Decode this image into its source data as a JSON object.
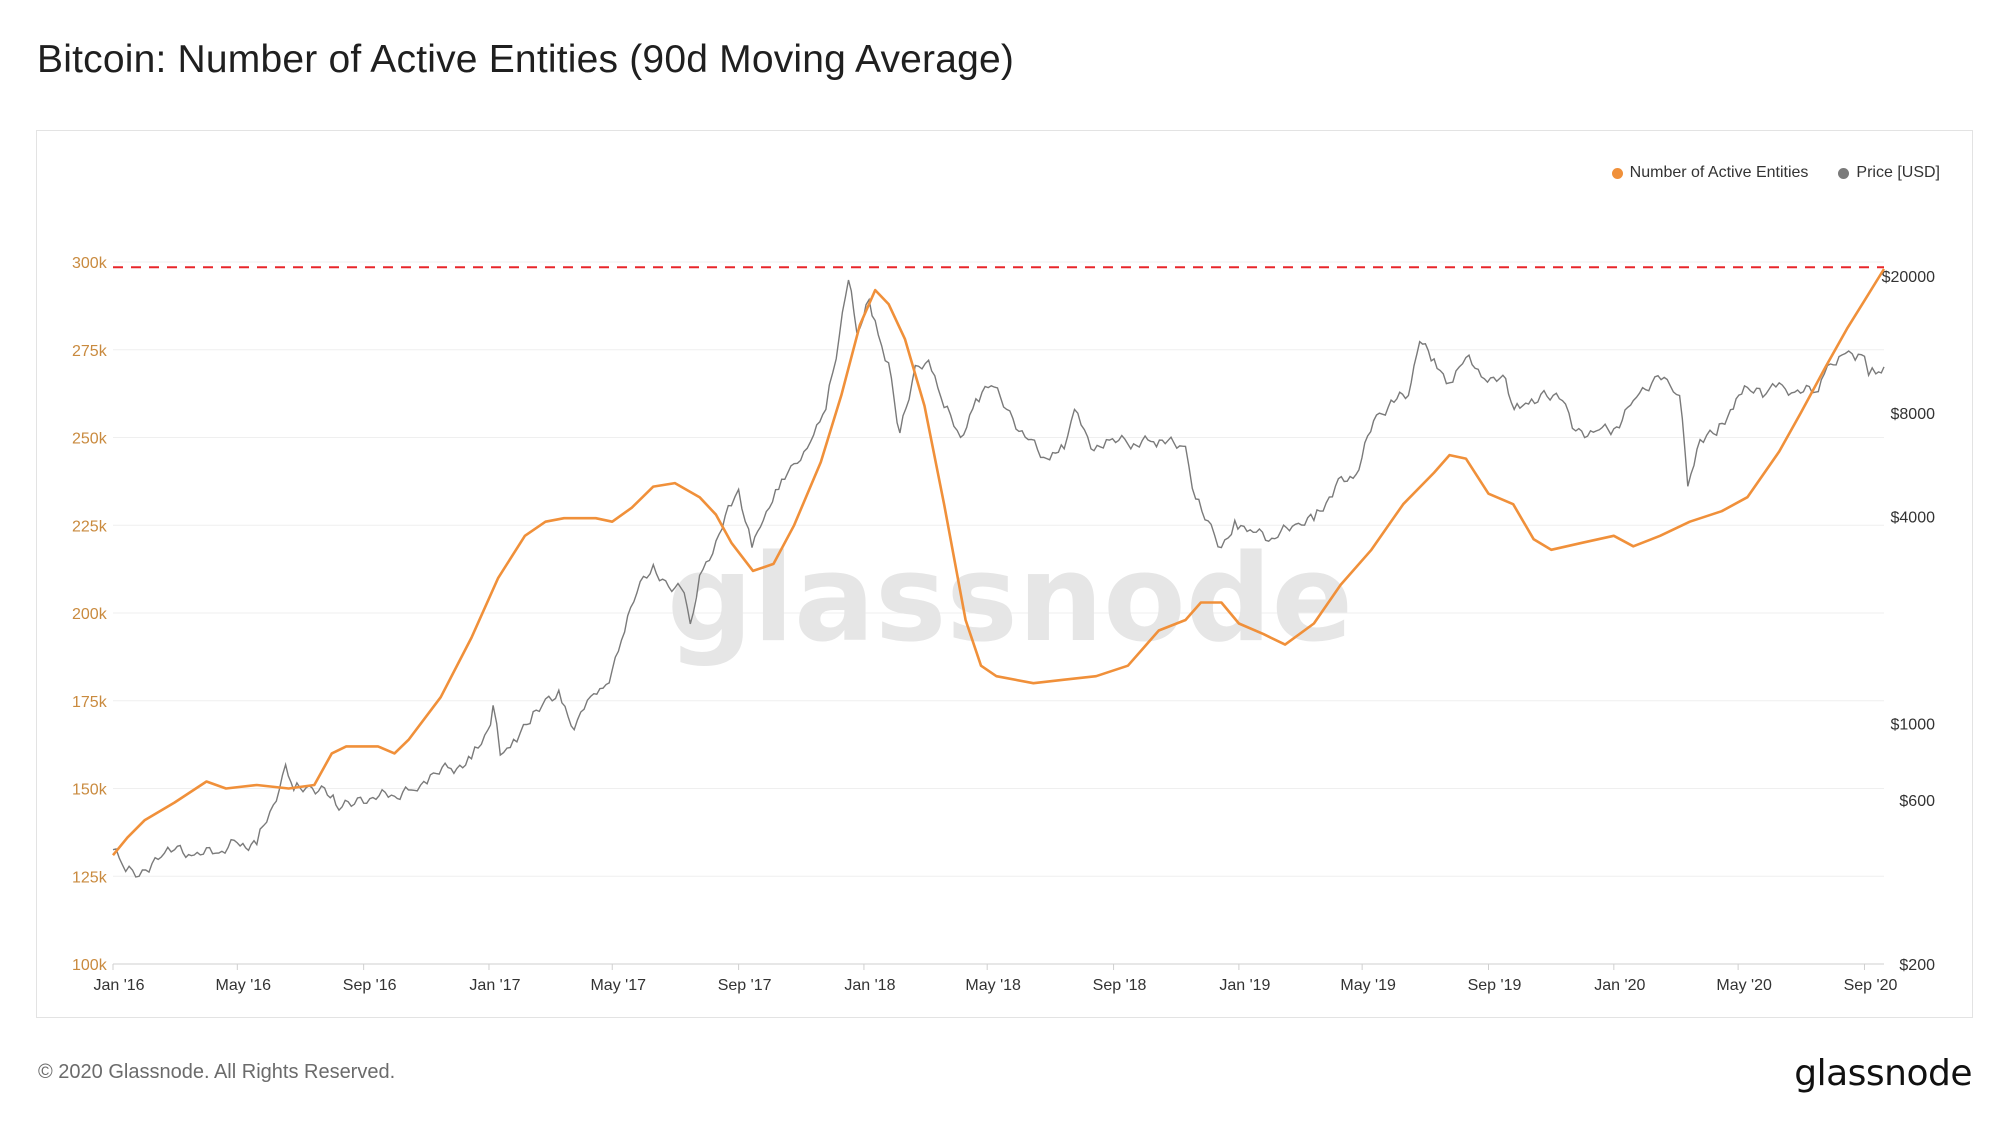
{
  "title": "Bitcoin: Number of Active Entities (90d Moving Average)",
  "footer": {
    "copyright": "© 2020 Glassnode. All Rights Reserved.",
    "logo_text": "glassnode"
  },
  "watermark": "glassnode",
  "colors": {
    "entities": "#f0903a",
    "price": "#7a7a7a",
    "threshold": "#e8262a",
    "left_tick": "#c98a3e",
    "grid": "#efefef"
  },
  "chart_data": {
    "type": "line",
    "legend": {
      "position": "top-right",
      "items": [
        "Number of Active Entities",
        "Price [USD]"
      ]
    },
    "grid": true,
    "x_ticks": [
      "Jan '16",
      "May '16",
      "Sep '16",
      "Jan '17",
      "May '17",
      "Sep '17",
      "Jan '18",
      "May '18",
      "Sep '18",
      "Jan '19",
      "May '19",
      "Sep '19",
      "Jan '20",
      "May '20",
      "Sep '20"
    ],
    "x_range": [
      "2016-01-01",
      "2020-09-20"
    ],
    "y_left": {
      "ylim": [
        100000,
        300000
      ],
      "ticks": [
        100000,
        125000,
        150000,
        175000,
        200000,
        225000,
        250000,
        275000,
        300000
      ],
      "tick_labels": [
        "100k",
        "125k",
        "150k",
        "175k",
        "200k",
        "225k",
        "250k",
        "275k",
        "300k"
      ]
    },
    "y_right": {
      "scale": "log",
      "ylim": [
        200,
        22000
      ],
      "ticks": [
        200,
        600,
        1000,
        4000,
        8000,
        20000
      ],
      "tick_labels": [
        "$200",
        "$600",
        "$1000",
        "$4000",
        "$8000",
        "$20000"
      ]
    },
    "threshold": {
      "axis": "left",
      "value": 298500,
      "style": "dashed"
    },
    "series": [
      {
        "name": "Number of Active Entities",
        "axis": "left",
        "points": [
          [
            "2016-01-01",
            131000
          ],
          [
            "2016-01-15",
            136000
          ],
          [
            "2016-02-01",
            141000
          ],
          [
            "2016-03-01",
            146000
          ],
          [
            "2016-04-01",
            152000
          ],
          [
            "2016-04-20",
            150000
          ],
          [
            "2016-05-20",
            151000
          ],
          [
            "2016-06-20",
            150000
          ],
          [
            "2016-07-15",
            151000
          ],
          [
            "2016-08-01",
            160000
          ],
          [
            "2016-08-15",
            162000
          ],
          [
            "2016-09-15",
            162000
          ],
          [
            "2016-10-01",
            160000
          ],
          [
            "2016-10-15",
            164000
          ],
          [
            "2016-11-15",
            176000
          ],
          [
            "2016-12-15",
            193000
          ],
          [
            "2017-01-10",
            210000
          ],
          [
            "2017-02-05",
            222000
          ],
          [
            "2017-02-25",
            226000
          ],
          [
            "2017-03-15",
            227000
          ],
          [
            "2017-04-15",
            227000
          ],
          [
            "2017-05-01",
            226000
          ],
          [
            "2017-05-20",
            230000
          ],
          [
            "2017-06-10",
            236000
          ],
          [
            "2017-07-01",
            237000
          ],
          [
            "2017-07-25",
            233000
          ],
          [
            "2017-08-10",
            228000
          ],
          [
            "2017-08-25",
            220000
          ],
          [
            "2017-09-15",
            212000
          ],
          [
            "2017-10-05",
            214000
          ],
          [
            "2017-10-25",
            225000
          ],
          [
            "2017-11-20",
            243000
          ],
          [
            "2017-12-10",
            262000
          ],
          [
            "2017-12-28",
            282000
          ],
          [
            "2018-01-12",
            292000
          ],
          [
            "2018-01-25",
            288000
          ],
          [
            "2018-02-10",
            278000
          ],
          [
            "2018-03-01",
            259000
          ],
          [
            "2018-03-20",
            231000
          ],
          [
            "2018-04-10",
            198000
          ],
          [
            "2018-04-25",
            185000
          ],
          [
            "2018-05-10",
            182000
          ],
          [
            "2018-06-15",
            180000
          ],
          [
            "2018-07-15",
            181000
          ],
          [
            "2018-08-15",
            182000
          ],
          [
            "2018-09-15",
            185000
          ],
          [
            "2018-10-15",
            195000
          ],
          [
            "2018-11-10",
            198000
          ],
          [
            "2018-11-25",
            203000
          ],
          [
            "2018-12-15",
            203000
          ],
          [
            "2019-01-01",
            197000
          ],
          [
            "2019-01-25",
            194000
          ],
          [
            "2019-02-15",
            191000
          ],
          [
            "2019-03-15",
            197000
          ],
          [
            "2019-04-10",
            208000
          ],
          [
            "2019-05-10",
            218000
          ],
          [
            "2019-06-10",
            231000
          ],
          [
            "2019-07-10",
            240000
          ],
          [
            "2019-07-25",
            245000
          ],
          [
            "2019-08-10",
            244000
          ],
          [
            "2019-09-01",
            234000
          ],
          [
            "2019-09-25",
            231000
          ],
          [
            "2019-10-15",
            221000
          ],
          [
            "2019-11-01",
            218000
          ],
          [
            "2019-12-01",
            220000
          ],
          [
            "2020-01-01",
            222000
          ],
          [
            "2020-01-20",
            219000
          ],
          [
            "2020-02-15",
            222000
          ],
          [
            "2020-03-15",
            226000
          ],
          [
            "2020-04-15",
            229000
          ],
          [
            "2020-05-10",
            233000
          ],
          [
            "2020-06-10",
            246000
          ],
          [
            "2020-07-01",
            257000
          ],
          [
            "2020-07-25",
            270000
          ],
          [
            "2020-08-15",
            281000
          ],
          [
            "2020-09-01",
            289000
          ],
          [
            "2020-09-20",
            298000
          ]
        ]
      },
      {
        "name": "Price [USD]",
        "axis": "right",
        "points": [
          [
            "2016-01-01",
            430
          ],
          [
            "2016-01-10",
            390
          ],
          [
            "2016-01-20",
            375
          ],
          [
            "2016-02-05",
            370
          ],
          [
            "2016-02-20",
            420
          ],
          [
            "2016-03-01",
            430
          ],
          [
            "2016-03-20",
            415
          ],
          [
            "2016-04-10",
            420
          ],
          [
            "2016-05-01",
            450
          ],
          [
            "2016-05-20",
            445
          ],
          [
            "2016-06-05",
            580
          ],
          [
            "2016-06-17",
            760
          ],
          [
            "2016-06-25",
            640
          ],
          [
            "2016-07-10",
            660
          ],
          [
            "2016-07-25",
            650
          ],
          [
            "2016-08-05",
            580
          ],
          [
            "2016-08-20",
            575
          ],
          [
            "2016-09-10",
            610
          ],
          [
            "2016-10-01",
            615
          ],
          [
            "2016-10-20",
            640
          ],
          [
            "2016-11-05",
            710
          ],
          [
            "2016-11-25",
            740
          ],
          [
            "2016-12-15",
            790
          ],
          [
            "2016-12-31",
            960
          ],
          [
            "2017-01-05",
            1130
          ],
          [
            "2017-01-12",
            810
          ],
          [
            "2017-01-25",
            900
          ],
          [
            "2017-02-10",
            1000
          ],
          [
            "2017-02-25",
            1180
          ],
          [
            "2017-03-10",
            1250
          ],
          [
            "2017-03-25",
            960
          ],
          [
            "2017-04-10",
            1200
          ],
          [
            "2017-04-25",
            1300
          ],
          [
            "2017-05-10",
            1750
          ],
          [
            "2017-05-25",
            2400
          ],
          [
            "2017-06-10",
            2900
          ],
          [
            "2017-06-25",
            2500
          ],
          [
            "2017-07-10",
            2400
          ],
          [
            "2017-07-16",
            1950
          ],
          [
            "2017-07-25",
            2700
          ],
          [
            "2017-08-10",
            3400
          ],
          [
            "2017-08-25",
            4300
          ],
          [
            "2017-09-01",
            4800
          ],
          [
            "2017-09-14",
            3250
          ],
          [
            "2017-09-25",
            3900
          ],
          [
            "2017-10-10",
            4800
          ],
          [
            "2017-10-25",
            5700
          ],
          [
            "2017-11-10",
            6600
          ],
          [
            "2017-11-25",
            8200
          ],
          [
            "2017-12-05",
            11500
          ],
          [
            "2017-12-17",
            19500
          ],
          [
            "2017-12-25",
            13800
          ],
          [
            "2018-01-06",
            17100
          ],
          [
            "2018-01-15",
            13500
          ],
          [
            "2018-01-25",
            11200
          ],
          [
            "2018-02-05",
            7000
          ],
          [
            "2018-02-20",
            11000
          ],
          [
            "2018-03-05",
            11400
          ],
          [
            "2018-03-20",
            8300
          ],
          [
            "2018-04-05",
            6800
          ],
          [
            "2018-04-20",
            8800
          ],
          [
            "2018-05-05",
            9600
          ],
          [
            "2018-05-20",
            8200
          ],
          [
            "2018-06-10",
            6700
          ],
          [
            "2018-06-28",
            5900
          ],
          [
            "2018-07-15",
            6300
          ],
          [
            "2018-07-25",
            8200
          ],
          [
            "2018-08-10",
            6300
          ],
          [
            "2018-08-25",
            6700
          ],
          [
            "2018-09-15",
            6500
          ],
          [
            "2018-10-10",
            6600
          ],
          [
            "2018-11-10",
            6400
          ],
          [
            "2018-11-20",
            4500
          ],
          [
            "2018-12-05",
            3800
          ],
          [
            "2018-12-15",
            3250
          ],
          [
            "2018-12-28",
            3900
          ],
          [
            "2019-01-15",
            3600
          ],
          [
            "2019-02-05",
            3450
          ],
          [
            "2019-02-25",
            3800
          ],
          [
            "2019-03-15",
            3900
          ],
          [
            "2019-04-05",
            4900
          ],
          [
            "2019-04-25",
            5300
          ],
          [
            "2019-05-15",
            7900
          ],
          [
            "2019-06-01",
            8600
          ],
          [
            "2019-06-15",
            9000
          ],
          [
            "2019-06-26",
            12900
          ],
          [
            "2019-07-10",
            11500
          ],
          [
            "2019-07-25",
            9800
          ],
          [
            "2019-08-10",
            11600
          ],
          [
            "2019-08-25",
            10200
          ],
          [
            "2019-09-15",
            10300
          ],
          [
            "2019-09-26",
            8200
          ],
          [
            "2019-10-10",
            8500
          ],
          [
            "2019-10-25",
            9300
          ],
          [
            "2019-11-15",
            8500
          ],
          [
            "2019-11-25",
            7100
          ],
          [
            "2019-12-15",
            7100
          ],
          [
            "2020-01-01",
            7200
          ],
          [
            "2020-01-20",
            8700
          ],
          [
            "2020-02-10",
            10200
          ],
          [
            "2020-02-25",
            9600
          ],
          [
            "2020-03-05",
            9000
          ],
          [
            "2020-03-13",
            4900
          ],
          [
            "2020-03-25",
            6700
          ],
          [
            "2020-04-10",
            6900
          ],
          [
            "2020-04-29",
            8800
          ],
          [
            "2020-05-10",
            9500
          ],
          [
            "2020-05-25",
            8900
          ],
          [
            "2020-06-10",
            9800
          ],
          [
            "2020-06-25",
            9200
          ],
          [
            "2020-07-15",
            9200
          ],
          [
            "2020-07-27",
            11000
          ],
          [
            "2020-08-10",
            11800
          ],
          [
            "2020-08-20",
            11900
          ],
          [
            "2020-09-01",
            11700
          ],
          [
            "2020-09-05",
            10300
          ],
          [
            "2020-09-12",
            10400
          ],
          [
            "2020-09-20",
            10900
          ]
        ]
      }
    ]
  }
}
